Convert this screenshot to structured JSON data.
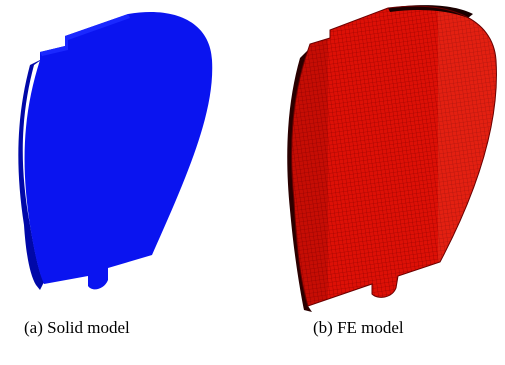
{
  "figure": {
    "panel_a": {
      "caption": "(a) Solid model",
      "fill_color": "#0a14f0",
      "edge_color": "#0008a8"
    },
    "panel_b": {
      "caption": "(b) FE model",
      "fill_color": "#dd1006",
      "mesh_color": "#8a0000",
      "edge_color": "#2a0000"
    }
  }
}
